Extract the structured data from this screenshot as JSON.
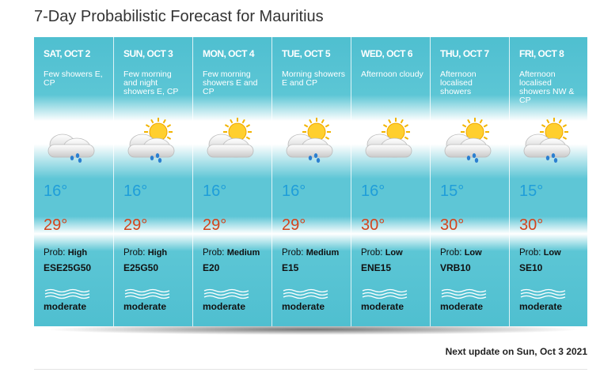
{
  "title": "7-Day Probabilistic Forecast for Mauritius",
  "days": [
    {
      "day": "SAT, OCT 2",
      "description": "Few showers E, CP",
      "low": "16°",
      "high": "29°",
      "prob_label": "Prob:",
      "prob": "High",
      "wind": "ESE25G50",
      "sea": "moderate"
    },
    {
      "day": "SUN, OCT 3",
      "description": "Few morning and night showers E, CP",
      "low": "16°",
      "high": "29°",
      "prob_label": "Prob:",
      "prob": "High",
      "wind": "E25G50",
      "sea": "moderate"
    },
    {
      "day": "MON, OCT 4",
      "description": "Few morning showers E and CP",
      "low": "16°",
      "high": "29°",
      "prob_label": "Prob:",
      "prob": "Medium",
      "wind": "E20",
      "sea": "moderate"
    },
    {
      "day": "TUE, OCT 5",
      "description": "Morning showers E and CP",
      "low": "16°",
      "high": "29°",
      "prob_label": "Prob:",
      "prob": "Medium",
      "wind": "E15",
      "sea": "moderate"
    },
    {
      "day": "WED, OCT 6",
      "description": "Afternoon cloudy",
      "low": "16°",
      "high": "30°",
      "prob_label": "Prob:",
      "prob": "Low",
      "wind": "ENE15",
      "sea": "moderate"
    },
    {
      "day": "THU, OCT 7",
      "description": "Afternoon localised showers",
      "low": "15°",
      "high": "30°",
      "prob_label": "Prob:",
      "prob": "Low",
      "wind": "VRB10",
      "sea": "moderate"
    },
    {
      "day": "FRI, OCT 8",
      "description": "Afternoon localised showers NW & CP",
      "low": "15°",
      "high": "30°",
      "prob_label": "Prob:",
      "prob": "Low",
      "wind": "SE10",
      "sea": "moderate"
    }
  ],
  "footer": {
    "label": "Next update on",
    "date": "Sun, Oct 3 2021"
  }
}
